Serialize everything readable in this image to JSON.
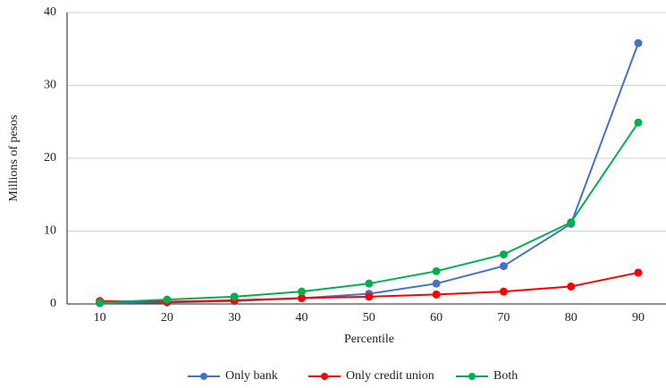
{
  "chart_data": {
    "type": "line",
    "x_label": "Percentile",
    "y_label": "Millions of pesos",
    "categories": [
      "10",
      "20",
      "30",
      "40",
      "50",
      "60",
      "70",
      "80",
      "90"
    ],
    "series": [
      {
        "name": "Only bank",
        "color": "#4472c4",
        "values": [
          0.1,
          0.2,
          0.4,
          0.8,
          1.4,
          2.8,
          5.2,
          11.0,
          35.8
        ]
      },
      {
        "name": "Only credit union",
        "color": "#ff0000",
        "values": [
          0.4,
          0.3,
          0.5,
          0.8,
          1.0,
          1.3,
          1.7,
          2.4,
          4.3
        ]
      },
      {
        "name": "Both",
        "color": "#00b050",
        "values": [
          0.2,
          0.6,
          1.0,
          1.7,
          2.8,
          4.5,
          6.8,
          11.2,
          24.9
        ]
      }
    ],
    "ylim": [
      0,
      40
    ],
    "yticks": [
      0,
      10,
      20,
      30,
      40
    ],
    "grid": true,
    "legend": "bottom"
  }
}
